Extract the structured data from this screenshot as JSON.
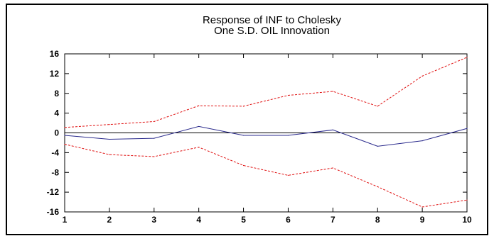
{
  "chart_data": {
    "type": "line",
    "title_line1": "Response of INF to Cholesky",
    "title_line2": "One S.D. OIL Innovation",
    "xlabel": "",
    "ylabel": "",
    "x": [
      1,
      2,
      3,
      4,
      5,
      6,
      7,
      8,
      9,
      10
    ],
    "xlim": [
      1,
      10
    ],
    "ylim": [
      -16,
      16
    ],
    "y_ticks": [
      16,
      12,
      8,
      4,
      0,
      -4,
      -8,
      -12,
      -16
    ],
    "x_ticks": [
      1,
      2,
      3,
      4,
      5,
      6,
      7,
      8,
      9,
      10
    ],
    "y_tick_labels": [
      "16",
      "12",
      "8",
      "4",
      "0",
      "-4",
      "-8",
      "-12",
      "-16"
    ],
    "x_tick_labels": [
      "1",
      "2",
      "3",
      "4",
      "5",
      "6",
      "7",
      "8",
      "9",
      "10"
    ],
    "zero_line": true,
    "grid": false,
    "legend": "none",
    "series": [
      {
        "role": "response",
        "color": "#2a2a8c",
        "dash": "solid",
        "values": [
          -0.5,
          -1.3,
          -1.1,
          1.3,
          -0.5,
          -0.5,
          0.6,
          -2.7,
          -1.6,
          0.9
        ]
      },
      {
        "role": "upper-band",
        "color": "#e01010",
        "dash": "dashed",
        "values": [
          1.1,
          1.7,
          2.3,
          5.5,
          5.4,
          7.6,
          8.4,
          5.4,
          11.5,
          15.3
        ]
      },
      {
        "role": "lower-band",
        "color": "#e01010",
        "dash": "dashed",
        "values": [
          -2.3,
          -4.4,
          -4.8,
          -2.9,
          -6.6,
          -8.6,
          -7.1,
          -10.9,
          -15.0,
          -13.6
        ]
      }
    ]
  }
}
